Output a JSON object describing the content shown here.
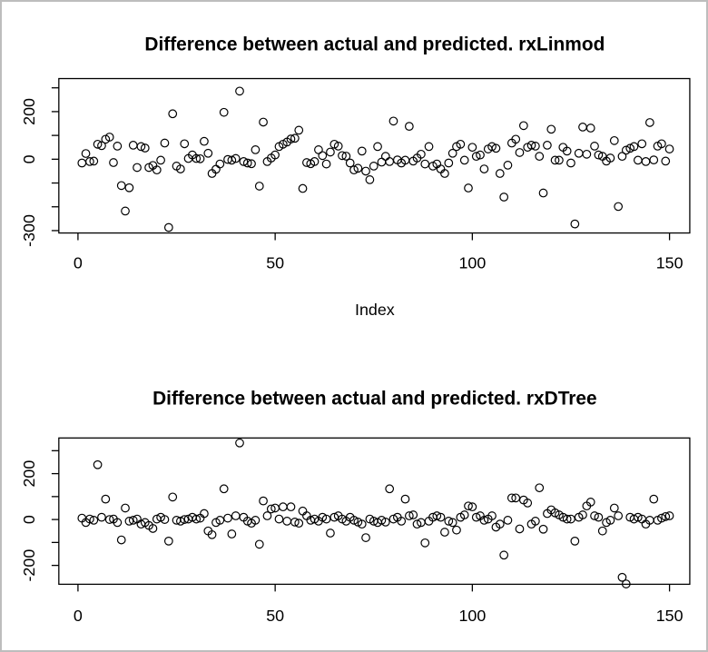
{
  "figure": {
    "background": "#ffffff",
    "frame_border_color": "#bdbdbd",
    "point_color": "#000000"
  },
  "chart_data": [
    {
      "type": "scatter",
      "title": "Difference between actual and predicted. rxLinmod",
      "xlabel": "Index",
      "ylabel": "",
      "marker": "open-circle",
      "color": "#000000",
      "grid": false,
      "legend": "none",
      "x_ticks": [
        0,
        50,
        100,
        150
      ],
      "y_ticks": [
        300,
        200,
        100,
        0,
        -100,
        -200,
        -300
      ],
      "y_tick_labels": [
        {
          "value": 200,
          "label": "200"
        },
        {
          "value": 0,
          "label": "0"
        },
        {
          "value": -300,
          "label": "-300"
        }
      ],
      "xlim": [
        -5,
        158
      ],
      "ylim": [
        -308,
        337
      ],
      "x_start": 1,
      "values": [
        -16,
        24,
        -10,
        -8,
        63,
        57,
        84,
        93,
        -14,
        55,
        -111,
        -218,
        -120,
        59,
        -35,
        53,
        47,
        -35,
        -26,
        -45,
        -4,
        68,
        -287,
        191,
        -29,
        -41,
        65,
        3,
        18,
        3,
        2,
        75,
        25,
        -60,
        -42,
        -20,
        197,
        -1,
        -4,
        3,
        286,
        -10,
        -16,
        -19,
        40,
        -113,
        156,
        -10,
        5,
        18,
        53,
        63,
        72,
        85,
        88,
        122,
        -123,
        -14,
        -19,
        -10,
        40,
        15,
        -20,
        30,
        63,
        55,
        15,
        13,
        -16,
        -45,
        -38,
        34,
        -50,
        -86,
        -29,
        53,
        -12,
        12,
        -10,
        160,
        -3,
        -16,
        -4,
        138,
        -8,
        5,
        21,
        -20,
        53,
        -29,
        -20,
        -41,
        -60,
        -16,
        25,
        53,
        63,
        -4,
        -121,
        50,
        12,
        18,
        -41,
        43,
        53,
        46,
        -60,
        -159,
        -25,
        68,
        84,
        28,
        141,
        50,
        59,
        55,
        12,
        -142,
        59,
        126,
        -4,
        -4,
        50,
        34,
        -16,
        -272,
        25,
        135,
        21,
        131,
        55,
        18,
        12,
        -8,
        5,
        78,
        -199,
        12,
        38,
        46,
        53,
        -4,
        65,
        -10,
        154,
        -3,
        55,
        65,
        -8,
        43
      ]
    },
    {
      "type": "scatter",
      "title": "Difference between actual and predicted. rxDTree",
      "xlabel": "",
      "ylabel": "",
      "marker": "open-circle",
      "color": "#000000",
      "grid": false,
      "legend": "none",
      "x_ticks": [
        0,
        50,
        100,
        150
      ],
      "y_ticks": [
        300,
        200,
        100,
        0,
        -100,
        -200
      ],
      "y_tick_labels": [
        {
          "value": 200,
          "label": "200"
        },
        {
          "value": 0,
          "label": "0"
        },
        {
          "value": -200,
          "label": "-200"
        }
      ],
      "xlim": [
        -5,
        158
      ],
      "ylim": [
        -282,
        355
      ],
      "x_start": 1,
      "values": [
        6,
        -13,
        2,
        -3,
        239,
        10,
        89,
        0,
        2,
        -13,
        -89,
        50,
        -7,
        -3,
        2,
        -20,
        -13,
        -26,
        -39,
        2,
        10,
        0,
        -94,
        98,
        -3,
        -7,
        0,
        2,
        10,
        2,
        6,
        26,
        -50,
        -66,
        -13,
        -3,
        134,
        6,
        -63,
        16,
        334,
        10,
        -7,
        -16,
        -3,
        -108,
        81,
        16,
        46,
        50,
        2,
        55,
        -7,
        55,
        -11,
        -16,
        37,
        16,
        -3,
        2,
        -7,
        10,
        2,
        -59,
        10,
        16,
        2,
        -7,
        10,
        -3,
        -11,
        -20,
        -79,
        2,
        -7,
        -13,
        -3,
        -11,
        134,
        2,
        10,
        -7,
        89,
        16,
        20,
        -20,
        -13,
        -102,
        -7,
        10,
        16,
        10,
        -55,
        -7,
        -13,
        -46,
        10,
        20,
        59,
        55,
        10,
        16,
        -3,
        2,
        16,
        -33,
        -20,
        -155,
        -3,
        94,
        94,
        -41,
        85,
        72,
        -20,
        -7,
        138,
        -42,
        26,
        42,
        29,
        20,
        10,
        2,
        2,
        -94,
        10,
        20,
        59,
        76,
        16,
        10,
        -50,
        -13,
        -3,
        50,
        16,
        -252,
        -281,
        10,
        2,
        10,
        2,
        -20,
        -3,
        89,
        -3,
        6,
        13,
        16
      ]
    }
  ]
}
